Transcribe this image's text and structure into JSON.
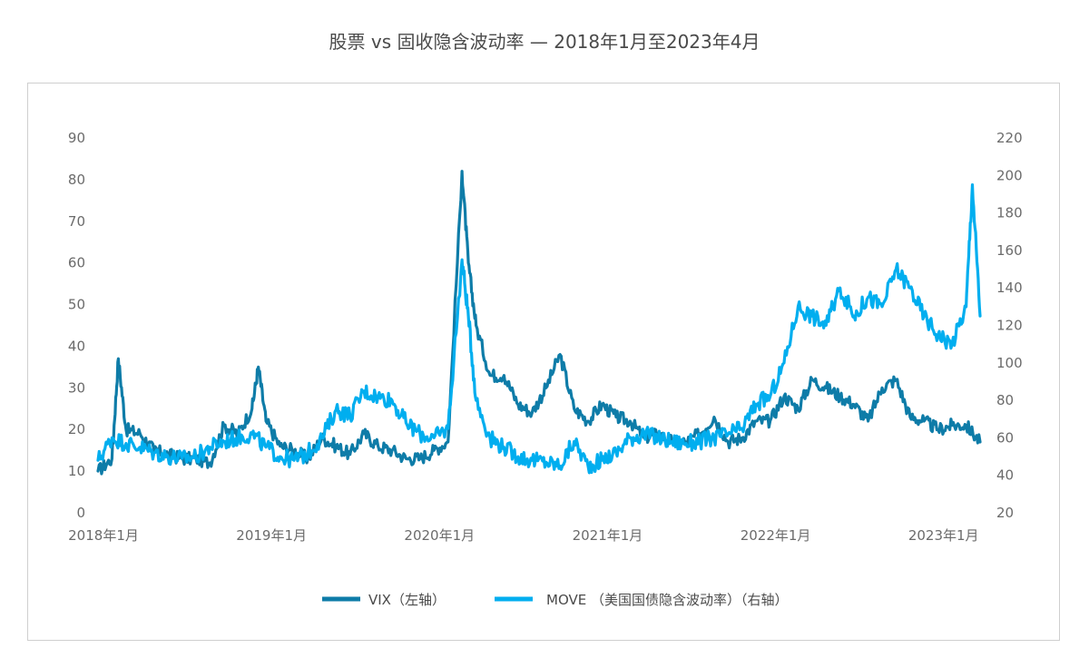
{
  "chart_data": {
    "type": "line",
    "title": "股票 vs 固收隐含波动率 — 2018年1月至2023年4月",
    "xlabel": "",
    "ylabel": "",
    "x_ticks": [
      "2018年1月",
      "2019年1月",
      "2020年1月",
      "2021年1月",
      "2022年1月",
      "2023年1月"
    ],
    "x_range": [
      "2018-01",
      "2023-04"
    ],
    "y_left": {
      "min": 0,
      "max": 90,
      "step": 10
    },
    "y_right": {
      "min": 20,
      "max": 220,
      "step": 20
    },
    "grid": false,
    "legend_position": "bottom",
    "series": [
      {
        "name": "VIX（左轴）",
        "axis": "left",
        "color": "#0e7ca8",
        "x": [
          "2018-01",
          "2018-02",
          "2018-02",
          "2018-03",
          "2018-04",
          "2018-05",
          "2018-06",
          "2018-07",
          "2018-08",
          "2018-09",
          "2018-10",
          "2018-11",
          "2018-12",
          "2018-12",
          "2019-01",
          "2019-02",
          "2019-03",
          "2019-04",
          "2019-05",
          "2019-06",
          "2019-07",
          "2019-08",
          "2019-09",
          "2019-10",
          "2019-11",
          "2019-12",
          "2020-01",
          "2020-02",
          "2020-03",
          "2020-03",
          "2020-04",
          "2020-05",
          "2020-06",
          "2020-07",
          "2020-08",
          "2020-09",
          "2020-10",
          "2020-11",
          "2020-12",
          "2021-01",
          "2021-02",
          "2021-03",
          "2021-04",
          "2021-05",
          "2021-06",
          "2021-07",
          "2021-08",
          "2021-09",
          "2021-10",
          "2021-11",
          "2021-12",
          "2022-01",
          "2022-02",
          "2022-03",
          "2022-04",
          "2022-05",
          "2022-06",
          "2022-07",
          "2022-08",
          "2022-09",
          "2022-10",
          "2022-11",
          "2022-12",
          "2023-01",
          "2023-02",
          "2023-03",
          "2023-04"
        ],
        "y": [
          10,
          13,
          37,
          20,
          19,
          15,
          14,
          13,
          13,
          12,
          21,
          19,
          25,
          35,
          22,
          16,
          15,
          13,
          18,
          16,
          14,
          19,
          16,
          15,
          13,
          13,
          15,
          17,
          82,
          60,
          45,
          33,
          33,
          26,
          24,
          30,
          38,
          25,
          22,
          26,
          23,
          22,
          18,
          19,
          17,
          17,
          19,
          23,
          17,
          18,
          22,
          22,
          28,
          25,
          32,
          30,
          28,
          26,
          22,
          30,
          32,
          23,
          22,
          20,
          21,
          21,
          17
        ]
      },
      {
        "name": "MOVE （美国国债隐含波动率）（右轴）",
        "axis": "right",
        "color": "#00aeef",
        "x": [
          "2018-01",
          "2018-02",
          "2018-03",
          "2018-04",
          "2018-05",
          "2018-06",
          "2018-07",
          "2018-08",
          "2018-09",
          "2018-10",
          "2018-11",
          "2018-12",
          "2019-01",
          "2019-02",
          "2019-03",
          "2019-04",
          "2019-05",
          "2019-06",
          "2019-07",
          "2019-08",
          "2019-09",
          "2019-10",
          "2019-11",
          "2019-12",
          "2020-01",
          "2020-02",
          "2020-03",
          "2020-03",
          "2020-04",
          "2020-05",
          "2020-06",
          "2020-07",
          "2020-08",
          "2020-09",
          "2020-10",
          "2020-11",
          "2020-12",
          "2021-01",
          "2021-02",
          "2021-03",
          "2021-04",
          "2021-05",
          "2021-06",
          "2021-07",
          "2021-08",
          "2021-09",
          "2021-10",
          "2021-11",
          "2021-12",
          "2022-01",
          "2022-02",
          "2022-03",
          "2022-04",
          "2022-05",
          "2022-06",
          "2022-07",
          "2022-08",
          "2022-09",
          "2022-10",
          "2022-11",
          "2022-12",
          "2023-01",
          "2023-02",
          "2023-03",
          "2023-03",
          "2023-04"
        ],
        "y": [
          48,
          60,
          57,
          55,
          52,
          50,
          49,
          50,
          55,
          58,
          60,
          62,
          55,
          50,
          48,
          52,
          60,
          75,
          72,
          85,
          82,
          80,
          68,
          62,
          60,
          65,
          155,
          125,
          80,
          60,
          55,
          50,
          48,
          47,
          45,
          58,
          45,
          48,
          52,
          60,
          62,
          60,
          58,
          57,
          58,
          60,
          62,
          65,
          78,
          82,
          100,
          130,
          125,
          120,
          140,
          125,
          135,
          130,
          150,
          140,
          125,
          115,
          110,
          130,
          195,
          125
        ]
      }
    ]
  }
}
